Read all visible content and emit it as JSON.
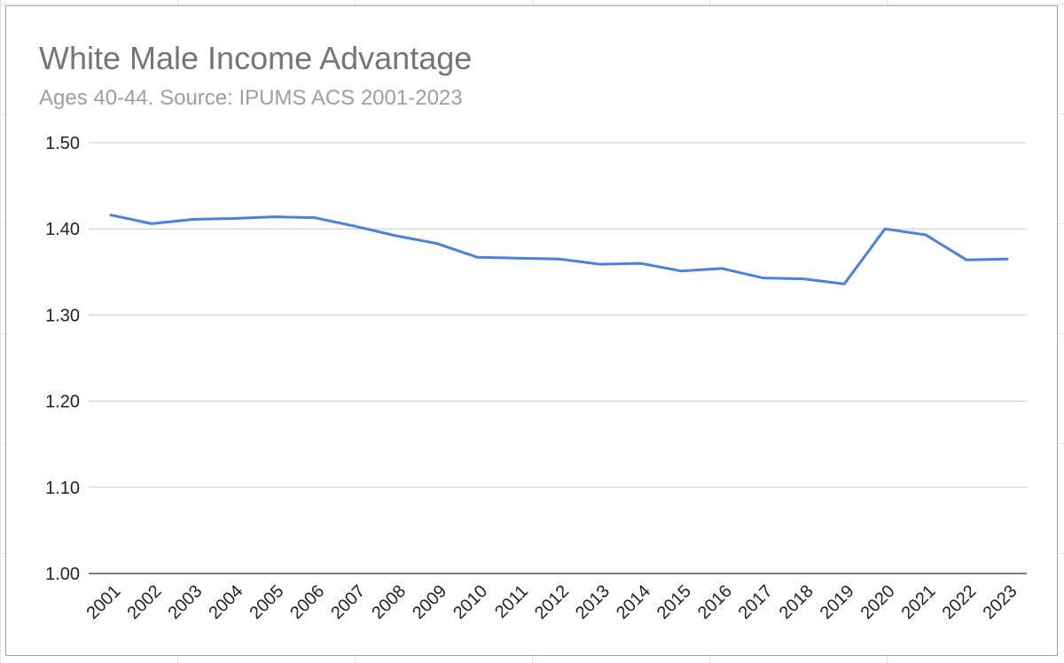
{
  "chart_data": {
    "type": "line",
    "title": "White Male Income Advantage",
    "subtitle": "Ages 40-44. Source: IPUMS ACS 2001-2023",
    "xlabel": "",
    "ylabel": "",
    "ylim": [
      1.0,
      1.5
    ],
    "yticks": [
      "1.00",
      "1.10",
      "1.20",
      "1.30",
      "1.40",
      "1.50"
    ],
    "grid": true,
    "categories": [
      "2001",
      "2002",
      "2003",
      "2004",
      "2005",
      "2006",
      "2007",
      "2008",
      "2009",
      "2010",
      "2011",
      "2012",
      "2013",
      "2014",
      "2015",
      "2016",
      "2017",
      "2018",
      "2019",
      "2020",
      "2021",
      "2022",
      "2023"
    ],
    "series": [
      {
        "values": [
          1.416,
          1.406,
          1.411,
          1.412,
          1.414,
          1.413,
          1.403,
          1.392,
          1.383,
          1.367,
          1.366,
          1.365,
          1.359,
          1.36,
          1.351,
          1.354,
          1.343,
          1.342,
          1.336,
          1.4,
          1.393,
          1.364,
          1.365
        ]
      }
    ],
    "colors": {
      "line": "#4a80e0",
      "grid": "#c8c8c8",
      "axis": "#333333"
    }
  }
}
